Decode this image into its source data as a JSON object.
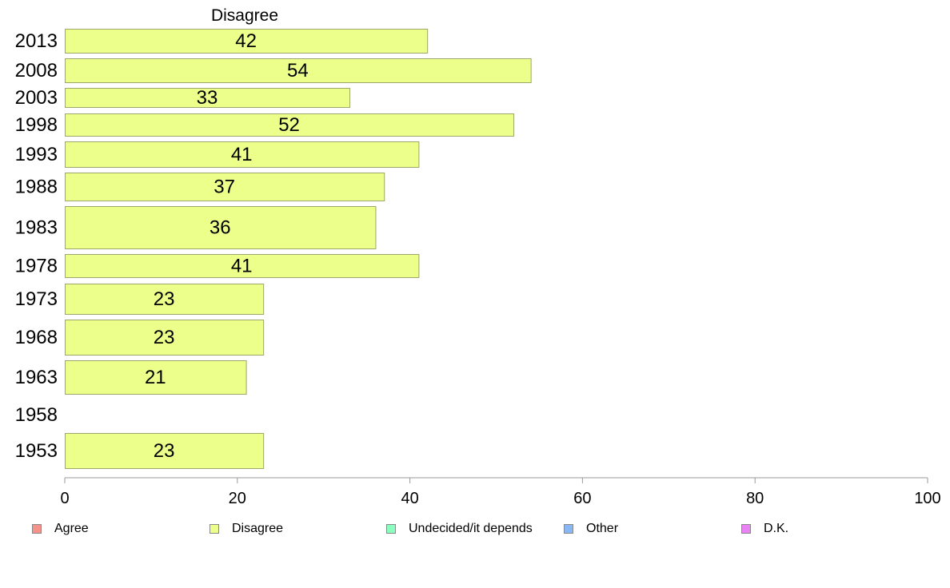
{
  "chart_data": {
    "type": "bar",
    "orientation": "horizontal",
    "title": "Disagree",
    "categories": [
      "2013",
      "2008",
      "2003",
      "1998",
      "1993",
      "1988",
      "1983",
      "1978",
      "1973",
      "1968",
      "1963",
      "1958",
      "1953"
    ],
    "series": [
      {
        "name": "Disagree",
        "values": [
          42,
          54,
          33,
          52,
          41,
          37,
          36,
          41,
          23,
          23,
          21,
          null,
          23
        ]
      }
    ],
    "xlim": [
      0,
      100
    ],
    "xticks": [
      0,
      20,
      40,
      60,
      80,
      100
    ],
    "xlabel": "",
    "ylabel": "",
    "grid": false,
    "legend_position": "bottom"
  },
  "legend": [
    {
      "label": "Agree",
      "color": "#f7928a"
    },
    {
      "label": "Disagree",
      "color": "#ebff8a"
    },
    {
      "label": "Undecided/it depends",
      "color": "#8affc0"
    },
    {
      "label": "Other",
      "color": "#8ab8f7"
    },
    {
      "label": "D.K.",
      "color": "#ea82f5"
    }
  ],
  "colors": {
    "bar_fill": "#ebff8a",
    "bar_stroke": "#9aa86a",
    "axis": "#999999"
  }
}
